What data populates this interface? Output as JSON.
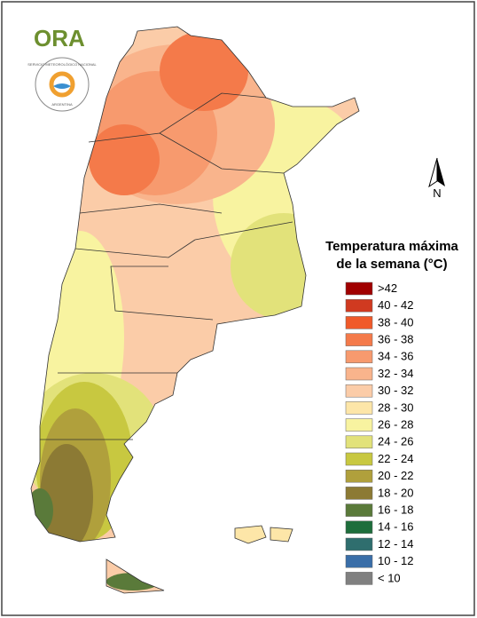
{
  "logo": {
    "text": "ORA",
    "seal_top": "SERVICIO METEOROLÓGICO NACIONAL",
    "seal_bottom": "ARGENTINA"
  },
  "compass": {
    "label": "N"
  },
  "legend": {
    "title": [
      "Temperatura máxima",
      "de la semana (°C)"
    ],
    "items": [
      {
        "label": ">42",
        "color": "#a00000"
      },
      {
        "label": "40 - 42",
        "color": "#d03a20"
      },
      {
        "label": "38 - 40",
        "color": "#f05a2a"
      },
      {
        "label": "36 - 38",
        "color": "#f47a4a"
      },
      {
        "label": "34 - 36",
        "color": "#f79a6e"
      },
      {
        "label": "32 - 34",
        "color": "#f9b48c"
      },
      {
        "label": "30 - 32",
        "color": "#fbcca8"
      },
      {
        "label": "28 - 30",
        "color": "#fde6a8"
      },
      {
        "label": "26 - 28",
        "color": "#f8f3a0"
      },
      {
        "label": "24 - 26",
        "color": "#e2e27a"
      },
      {
        "label": "22 - 24",
        "color": "#c8c840"
      },
      {
        "label": "20 - 22",
        "color": "#b0a03c"
      },
      {
        "label": "18 - 20",
        "color": "#8c7a34"
      },
      {
        "label": "16 - 18",
        "color": "#5a7a3a"
      },
      {
        "label": "14 - 16",
        "color": "#1e6e3c"
      },
      {
        "label": "12 - 14",
        "color": "#2f6e6e"
      },
      {
        "label": "10 - 12",
        "color": "#3a6ea8"
      },
      {
        "label": "< 10",
        "color": "#808080"
      }
    ]
  }
}
